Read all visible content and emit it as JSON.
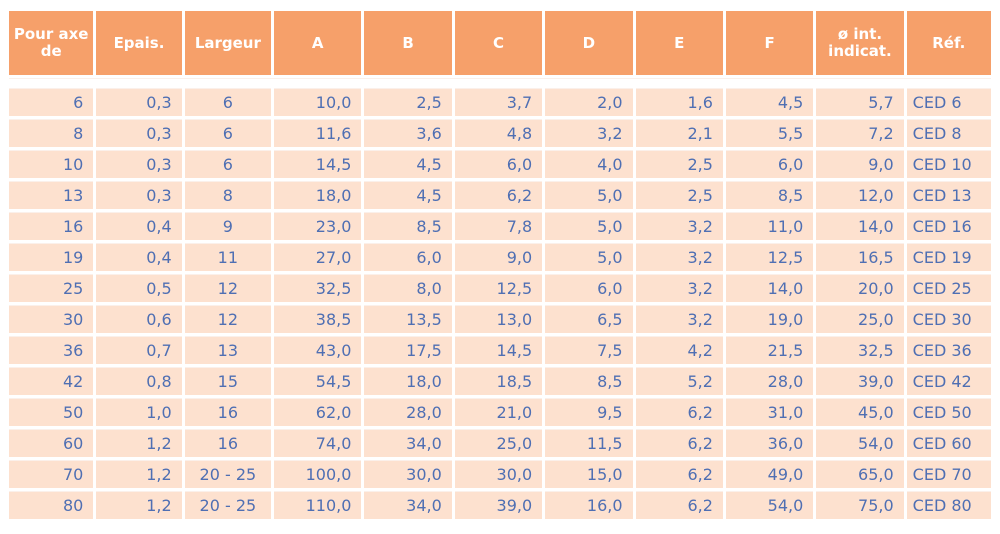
{
  "table": {
    "headers": [
      "Pour axe de",
      "Epais.",
      "Largeur",
      "A",
      "B",
      "C",
      "D",
      "E",
      "F",
      "ø int. indicat.",
      "Réf."
    ],
    "rows": [
      [
        "6",
        "0,3",
        "6",
        "10,0",
        "2,5",
        "3,7",
        "2,0",
        "1,6",
        "4,5",
        "5,7",
        "CED 6"
      ],
      [
        "8",
        "0,3",
        "6",
        "11,6",
        "3,6",
        "4,8",
        "3,2",
        "2,1",
        "5,5",
        "7,2",
        "CED 8"
      ],
      [
        "10",
        "0,3",
        "6",
        "14,5",
        "4,5",
        "6,0",
        "4,0",
        "2,5",
        "6,0",
        "9,0",
        "CED 10"
      ],
      [
        "13",
        "0,3",
        "8",
        "18,0",
        "4,5",
        "6,2",
        "5,0",
        "2,5",
        "8,5",
        "12,0",
        "CED 13"
      ],
      [
        "16",
        "0,4",
        "9",
        "23,0",
        "8,5",
        "7,8",
        "5,0",
        "3,2",
        "11,0",
        "14,0",
        "CED 16"
      ],
      [
        "19",
        "0,4",
        "11",
        "27,0",
        "6,0",
        "9,0",
        "5,0",
        "3,2",
        "12,5",
        "16,5",
        "CED 19"
      ],
      [
        "25",
        "0,5",
        "12",
        "32,5",
        "8,0",
        "12,5",
        "6,0",
        "3,2",
        "14,0",
        "20,0",
        "CED 25"
      ],
      [
        "30",
        "0,6",
        "12",
        "38,5",
        "13,5",
        "13,0",
        "6,5",
        "3,2",
        "19,0",
        "25,0",
        "CED 30"
      ],
      [
        "36",
        "0,7",
        "13",
        "43,0",
        "17,5",
        "14,5",
        "7,5",
        "4,2",
        "21,5",
        "32,5",
        "CED 36"
      ],
      [
        "42",
        "0,8",
        "15",
        "54,5",
        "18,0",
        "18,5",
        "8,5",
        "5,2",
        "28,0",
        "39,0",
        "CED 42"
      ],
      [
        "50",
        "1,0",
        "16",
        "62,0",
        "28,0",
        "21,0",
        "9,5",
        "6,2",
        "31,0",
        "45,0",
        "CED 50"
      ],
      [
        "60",
        "1,2",
        "16",
        "74,0",
        "34,0",
        "25,0",
        "11,5",
        "6,2",
        "36,0",
        "54,0",
        "CED 60"
      ],
      [
        "70",
        "1,2",
        "20 - 25",
        "100,0",
        "30,0",
        "30,0",
        "15,0",
        "6,2",
        "49,0",
        "65,0",
        "CED 70"
      ],
      [
        "80",
        "1,2",
        "20 - 25",
        "110,0",
        "34,0",
        "39,0",
        "16,0",
        "6,2",
        "54,0",
        "75,0",
        "CED 80"
      ]
    ]
  },
  "colors": {
    "header_bg": "#f6a06a",
    "header_text": "#ffffff",
    "cell_bg": "#fde1cf",
    "cell_text": "#4f6fb3"
  }
}
